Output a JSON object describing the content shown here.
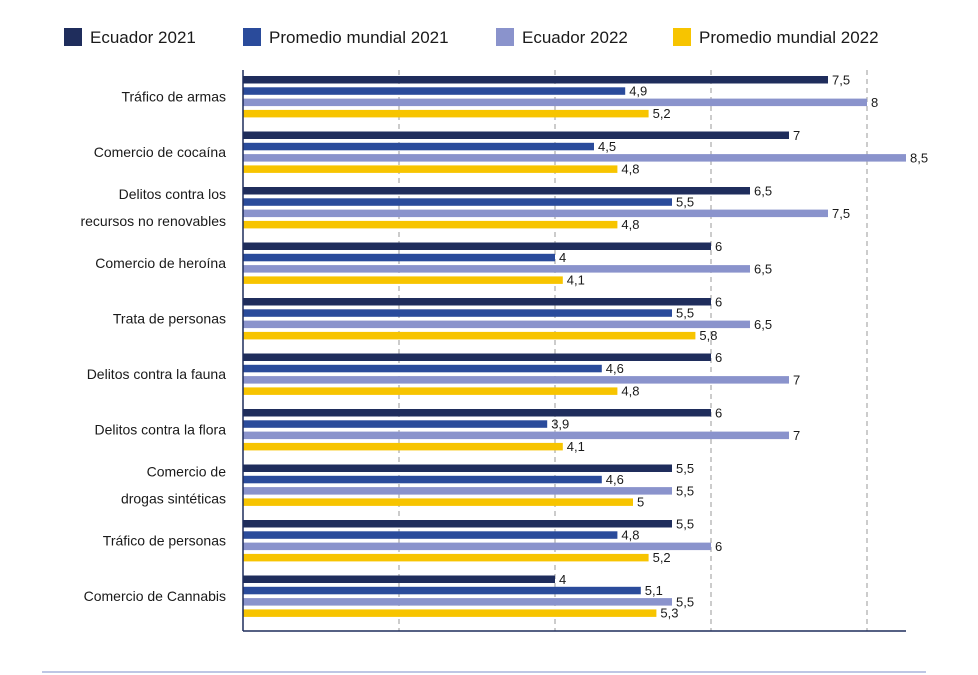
{
  "chart_data": {
    "type": "bar",
    "orientation": "horizontal",
    "title": "",
    "xlabel": "",
    "ylabel": "",
    "xlim": [
      0,
      8.5
    ],
    "grid": true,
    "legend_position": "top",
    "categories": [
      [
        "Tráfico de armas"
      ],
      [
        "Comercio de cocaína"
      ],
      [
        "Delitos contra los",
        "recursos no renovables"
      ],
      [
        "Comercio de heroína"
      ],
      [
        "Trata de personas"
      ],
      [
        "Delitos contra la fauna"
      ],
      [
        "Delitos contra la flora"
      ],
      [
        "Comercio de",
        "drogas sintéticas"
      ],
      [
        "Tráfico de personas"
      ],
      [
        "Comercio de Cannabis"
      ]
    ],
    "series": [
      {
        "name": "Ecuador 2021",
        "color": "#1f2d5c",
        "values": [
          7.5,
          7,
          6.5,
          6,
          6,
          6,
          6,
          5.5,
          5.5,
          4
        ],
        "labels": [
          "7,5",
          "7",
          "6,5",
          "6",
          "6",
          "6",
          "6",
          "5,5",
          "5,5",
          "4"
        ]
      },
      {
        "name": "Promedio mundial 2021",
        "color": "#2a4b9b",
        "values": [
          4.9,
          4.5,
          5.5,
          4,
          5.5,
          4.6,
          3.9,
          4.6,
          4.8,
          5.1
        ],
        "labels": [
          "4,9",
          "4,5",
          "5,5",
          "4",
          "5,5",
          "4,6",
          "3,9",
          "4,6",
          "4,8",
          "5,1"
        ]
      },
      {
        "name": "Ecuador 2022",
        "color": "#8a93cc",
        "values": [
          8,
          8.5,
          7.5,
          6.5,
          6.5,
          7,
          7,
          5.5,
          6,
          5.5
        ],
        "labels": [
          "8",
          "8,5",
          "7,5",
          "6,5",
          "6,5",
          "7",
          "7",
          "5,5",
          "6",
          "5,5"
        ]
      },
      {
        "name": "Promedio mundial 2022",
        "color": "#f7c400",
        "values": [
          5.2,
          4.8,
          4.8,
          4.1,
          5.8,
          4.8,
          4.1,
          5,
          5.2,
          5.3
        ],
        "labels": [
          "5,2",
          "4,8",
          "4,8",
          "4,1",
          "5,8",
          "4,8",
          "4,1",
          "5",
          "5,2",
          "5,3"
        ]
      }
    ],
    "axis_color": "#1f2d5c",
    "grid_color": "#9a9a9a",
    "footer_rule_color": "#a9b4dc"
  }
}
